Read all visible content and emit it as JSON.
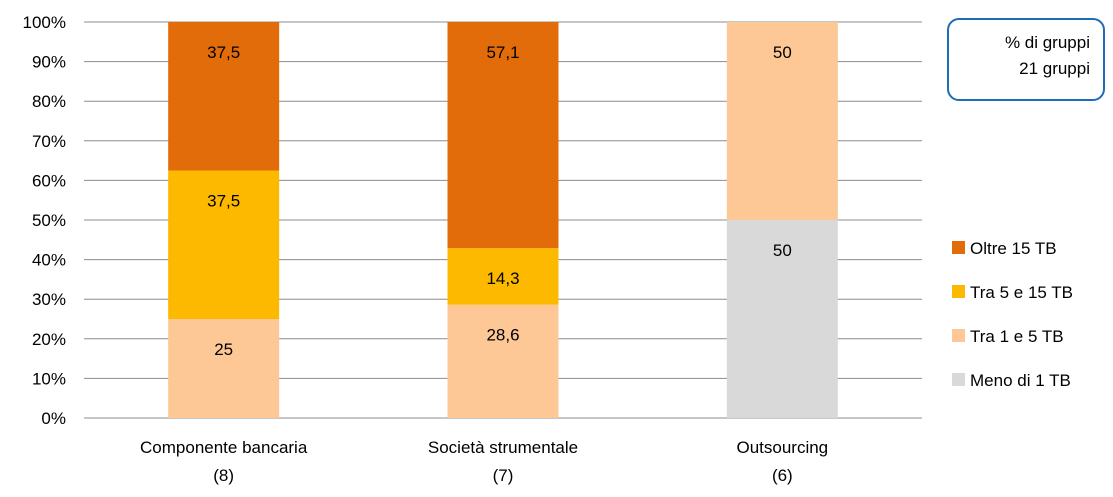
{
  "chart_data": {
    "type": "bar",
    "stacked": true,
    "categories": [
      {
        "label": "Componente bancaria",
        "count": "(8)"
      },
      {
        "label": "Società strumentale",
        "count": "(7)"
      },
      {
        "label": "Outsourcing",
        "count": "(6)"
      }
    ],
    "series": [
      {
        "name": "Meno di 1 TB",
        "color": "#d9d9d9",
        "values": [
          null,
          null,
          50
        ]
      },
      {
        "name": "Tra 1 e 5 TB",
        "color": "#fdc896",
        "values": [
          25,
          28.6,
          50
        ]
      },
      {
        "name": "Tra 5 e 15 TB",
        "color": "#fdb900",
        "values": [
          37.5,
          14.3,
          null
        ]
      },
      {
        "name": "Oltre 15 TB",
        "color": "#e36c0a",
        "values": [
          37.5,
          57.1,
          null
        ]
      }
    ],
    "data_labels": [
      [
        "",
        "25",
        "37,5",
        "37,5"
      ],
      [
        "",
        "28,6",
        "14,3",
        "57,1"
      ],
      [
        "50",
        "50",
        "",
        ""
      ]
    ],
    "ylim": [
      0,
      100
    ],
    "y_ticks": [
      "0%",
      "10%",
      "20%",
      "30%",
      "40%",
      "50%",
      "60%",
      "70%",
      "80%",
      "90%",
      "100%"
    ],
    "grid": true,
    "legend_order": [
      "Oltre 15 TB",
      "Tra 5 e 15 TB",
      "Tra 1 e 5 TB",
      "Meno di 1 TB"
    ],
    "legend_position": "right"
  },
  "note": {
    "line1": "% di gruppi",
    "line2": "21 gruppi"
  }
}
